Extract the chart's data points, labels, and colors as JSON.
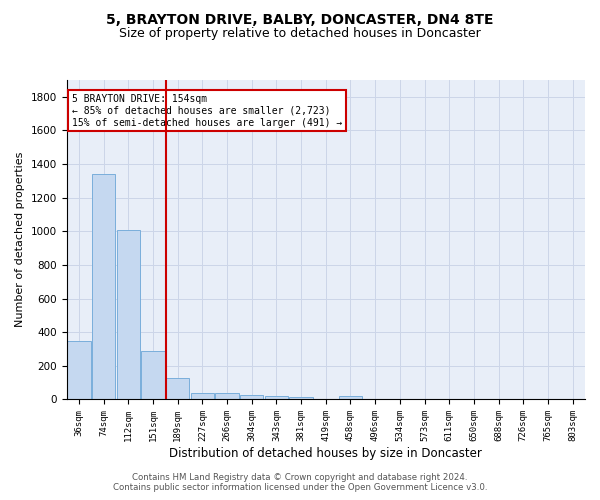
{
  "title": "5, BRAYTON DRIVE, BALBY, DONCASTER, DN4 8TE",
  "subtitle": "Size of property relative to detached houses in Doncaster",
  "xlabel": "Distribution of detached houses by size in Doncaster",
  "ylabel": "Number of detached properties",
  "categories": [
    "36sqm",
    "74sqm",
    "112sqm",
    "151sqm",
    "189sqm",
    "227sqm",
    "266sqm",
    "304sqm",
    "343sqm",
    "381sqm",
    "419sqm",
    "458sqm",
    "496sqm",
    "534sqm",
    "573sqm",
    "611sqm",
    "650sqm",
    "688sqm",
    "726sqm",
    "765sqm",
    "803sqm"
  ],
  "values": [
    350,
    1340,
    1010,
    290,
    130,
    40,
    40,
    25,
    20,
    15,
    0,
    20,
    0,
    0,
    0,
    0,
    0,
    0,
    0,
    0,
    0
  ],
  "bar_color": "#c5d8f0",
  "bar_edge_color": "#7aaedb",
  "red_line_x": 3.52,
  "annotation_title": "5 BRAYTON DRIVE: 154sqm",
  "annotation_line1": "← 85% of detached houses are smaller (2,723)",
  "annotation_line2": "15% of semi-detached houses are larger (491) →",
  "annotation_box_color": "#ffffff",
  "annotation_edge_color": "#cc0000",
  "ylim": [
    0,
    1900
  ],
  "yticks": [
    0,
    200,
    400,
    600,
    800,
    1000,
    1200,
    1400,
    1600,
    1800
  ],
  "grid_color": "#ccd5e8",
  "bg_color": "#e8eef8",
  "footer": "Contains HM Land Registry data © Crown copyright and database right 2024.\nContains public sector information licensed under the Open Government Licence v3.0.",
  "title_fontsize": 10,
  "subtitle_fontsize": 9,
  "xlabel_fontsize": 8.5,
  "ylabel_fontsize": 8
}
